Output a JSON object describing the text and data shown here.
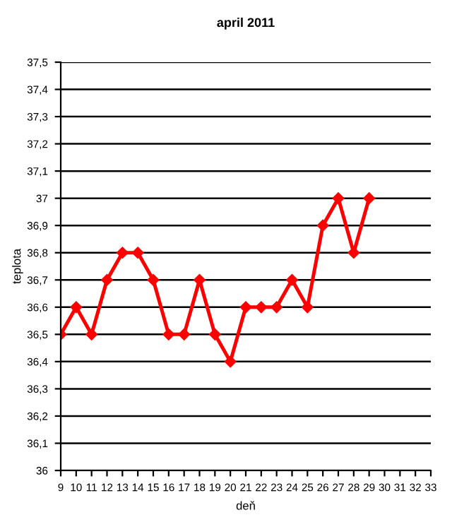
{
  "chart_data": {
    "type": "line",
    "title": "april 2011",
    "xlabel": "deň",
    "ylabel": "teplota",
    "x": [
      9,
      10,
      11,
      12,
      13,
      14,
      15,
      16,
      17,
      18,
      19,
      20,
      21,
      22,
      23,
      24,
      25,
      26,
      27,
      28,
      29
    ],
    "series": [
      {
        "color": "#ff0000",
        "values": [
          36.5,
          36.6,
          36.5,
          36.7,
          36.8,
          36.8,
          36.7,
          36.5,
          36.5,
          36.7,
          36.5,
          36.4,
          36.6,
          36.6,
          36.6,
          36.7,
          36.6,
          36.9,
          37,
          36.8,
          37
        ]
      }
    ],
    "xlim": [
      9,
      33
    ],
    "xticks": [
      9,
      10,
      11,
      12,
      13,
      14,
      15,
      16,
      17,
      18,
      19,
      20,
      21,
      22,
      23,
      24,
      25,
      26,
      27,
      28,
      29,
      30,
      31,
      32,
      33
    ],
    "ylim": [
      36,
      37.5
    ],
    "yticks": [
      36,
      {
        "value": 36.1,
        "label": "36,1"
      },
      {
        "value": 36.2,
        "label": "36,2"
      },
      {
        "value": 36.3,
        "label": "36,3"
      },
      {
        "value": 36.4,
        "label": "36,4"
      },
      {
        "value": 36.5,
        "label": "36,5"
      },
      {
        "value": 36.6,
        "label": "36,6"
      },
      {
        "value": 36.7,
        "label": "36,7"
      },
      {
        "value": 36.8,
        "label": "36,8"
      },
      {
        "value": 36.9,
        "label": "36,9"
      },
      37,
      {
        "value": 37.1,
        "label": "37,1"
      },
      {
        "value": 37.2,
        "label": "37,2"
      },
      {
        "value": 37.3,
        "label": "37,3"
      },
      {
        "value": 37.4,
        "label": "37,4"
      },
      {
        "value": 37.5,
        "label": "37,5"
      }
    ],
    "grid": "y",
    "marker": "diamond",
    "line_style": "solid"
  }
}
